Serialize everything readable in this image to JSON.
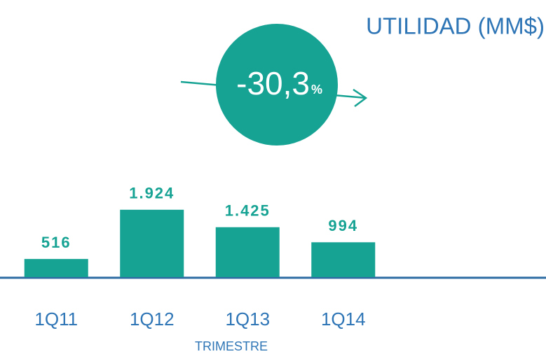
{
  "chart_data": {
    "type": "bar",
    "title": "UTILIDAD (MM$)",
    "annotation": "-30,3",
    "annotation_unit": "%",
    "categories": [
      "1Q11",
      "1Q12",
      "1Q13",
      "1Q14"
    ],
    "values": [
      516,
      1924,
      1425,
      994
    ],
    "value_labels": [
      "516",
      "1.924",
      "1.425",
      "994"
    ],
    "x_label": "TRIMESTRE",
    "color": "#17a394",
    "ylim": [
      0,
      2000
    ]
  }
}
